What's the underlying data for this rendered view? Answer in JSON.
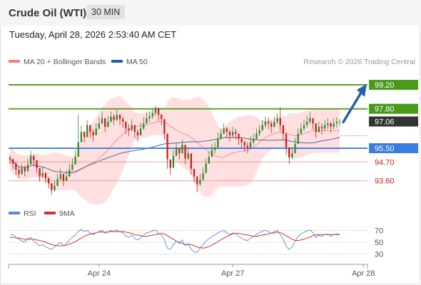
{
  "header": {
    "title": "Crude Oil (WTI)",
    "timeframe": "30 MIN"
  },
  "timestamp": "Tuesday, April 28, 2026 2:53:40 AM CET",
  "colors": {
    "resistance": "#4a9a1a",
    "support": "#3a7de0",
    "minor_support": "#f08080",
    "current": "#333333",
    "arrow": "#2b5ea8",
    "bull_candle": "#2f8a2f",
    "bear_candle": "#c81e1e",
    "rsi": "#5b8ad6",
    "rsi_ma": "#d83030",
    "bollinger_fill": "#ffd9d9",
    "ma50": "#4a6aa0"
  },
  "chart_data": [
    {
      "type": "candlestick",
      "title": "",
      "legend": [
        {
          "name": "MA 20 + Bollinger Bands",
          "color": "#f08080"
        },
        {
          "name": "MA 50",
          "color": "#2b5ea8"
        }
      ],
      "legend_position": "top-left",
      "watermark": "Research © 2026 Trading Central",
      "ylim": [
        92.3,
        100.2
      ],
      "x_ticks": [
        {
          "label": "Apr 24",
          "i": 30
        },
        {
          "label": "Apr 27",
          "i": 75
        },
        {
          "label": "Apr 28",
          "i": 119
        }
      ],
      "levels": [
        {
          "label": "99.20",
          "value": 99.2,
          "kind": "resistance"
        },
        {
          "label": "97.80",
          "value": 97.8,
          "kind": "resistance"
        },
        {
          "label": "97.06",
          "value": 97.06,
          "kind": "current"
        },
        {
          "label": "95.50",
          "value": 95.5,
          "kind": "support"
        },
        {
          "label": "94.70",
          "value": 94.7,
          "kind": "minor_support"
        },
        {
          "label": "93.60",
          "value": 93.6,
          "kind": "minor_support"
        }
      ],
      "projection": {
        "from": 97.06,
        "to": 99.2
      },
      "closes": [
        94.85,
        94.6,
        94.25,
        94.0,
        94.35,
        94.15,
        94.55,
        95.05,
        94.8,
        94.35,
        93.85,
        94.05,
        93.75,
        93.45,
        93.05,
        93.3,
        93.7,
        94.0,
        93.6,
        93.85,
        94.25,
        94.55,
        95.0,
        95.85,
        96.45,
        96.15,
        96.85,
        96.45,
        96.25,
        96.65,
        96.95,
        97.25,
        96.75,
        97.05,
        97.35,
        97.15,
        97.45,
        97.2,
        97.05,
        96.65,
        96.55,
        96.85,
        96.45,
        96.25,
        96.65,
        96.95,
        97.25,
        97.35,
        97.55,
        97.85,
        97.45,
        97.2,
        96.35,
        94.85,
        94.35,
        95.05,
        95.5,
        95.2,
        95.7,
        94.9,
        95.2,
        94.3,
        93.85,
        93.4,
        93.65,
        94.05,
        94.6,
        95.0,
        95.4,
        95.55,
        96.05,
        96.35,
        96.65,
        96.45,
        96.25,
        96.45,
        96.35,
        96.05,
        95.85,
        95.65,
        95.55,
        95.85,
        96.05,
        96.35,
        96.55,
        96.85,
        97.05,
        96.95,
        96.75,
        97.05,
        97.25,
        96.85,
        96.35,
        95.55,
        94.95,
        95.2,
        95.75,
        96.35,
        96.65,
        96.85,
        97.05,
        97.25,
        96.95,
        96.45,
        96.75,
        96.65,
        96.85,
        96.95,
        96.75,
        96.95,
        97.05,
        97.06
      ],
      "highs": [
        95.1,
        94.9,
        94.7,
        94.4,
        94.6,
        94.5,
        94.9,
        95.35,
        95.1,
        94.7,
        94.2,
        94.4,
        94.1,
        93.8,
        93.4,
        93.6,
        94.0,
        94.3,
        93.9,
        94.2,
        94.6,
        94.9,
        95.4,
        97.45,
        96.8,
        96.5,
        97.15,
        96.8,
        96.6,
        96.95,
        97.3,
        97.6,
        97.0,
        97.4,
        97.65,
        97.5,
        97.75,
        97.5,
        97.35,
        97.0,
        96.9,
        97.2,
        96.8,
        96.6,
        97.0,
        97.3,
        97.6,
        97.65,
        97.85,
        98.0,
        97.75,
        97.5,
        96.7,
        95.2,
        94.7,
        95.4,
        95.8,
        95.5,
        96.0,
        95.2,
        95.5,
        94.65,
        94.15,
        93.75,
        94.0,
        94.4,
        94.9,
        95.3,
        95.75,
        95.85,
        96.4,
        96.65,
        96.95,
        96.75,
        96.6,
        96.75,
        96.65,
        96.35,
        96.15,
        95.95,
        95.85,
        96.2,
        96.35,
        96.65,
        96.85,
        97.15,
        97.35,
        97.3,
        97.1,
        97.35,
        97.55,
        97.9,
        96.7,
        95.85,
        95.3,
        95.5,
        96.1,
        96.65,
        96.95,
        97.15,
        97.4,
        97.6,
        97.25,
        96.8,
        97.05,
        96.95,
        97.15,
        97.25,
        97.05,
        97.25,
        97.3,
        97.2
      ],
      "lows": [
        94.55,
        94.3,
        93.95,
        93.75,
        93.95,
        93.85,
        94.25,
        94.7,
        94.45,
        94.05,
        93.55,
        93.75,
        93.45,
        93.15,
        92.8,
        92.95,
        93.35,
        93.65,
        93.3,
        93.55,
        93.9,
        94.2,
        94.7,
        95.5,
        96.05,
        95.85,
        96.5,
        96.1,
        95.9,
        96.3,
        96.6,
        96.9,
        96.45,
        96.7,
        97.0,
        96.85,
        97.1,
        96.85,
        96.7,
        96.3,
        96.2,
        96.5,
        96.1,
        95.9,
        96.3,
        96.6,
        96.9,
        97.0,
        97.2,
        97.4,
        97.1,
        96.85,
        96.0,
        94.3,
        93.95,
        94.7,
        95.1,
        94.85,
        95.35,
        94.55,
        94.8,
        93.95,
        93.5,
        92.95,
        93.3,
        93.7,
        94.25,
        94.65,
        95.05,
        95.2,
        95.7,
        96.0,
        96.3,
        96.1,
        95.9,
        96.1,
        96.0,
        95.7,
        95.5,
        95.3,
        95.2,
        95.5,
        95.7,
        96.0,
        96.2,
        96.5,
        96.7,
        96.6,
        96.4,
        96.7,
        96.9,
        96.5,
        95.95,
        95.1,
        94.6,
        94.85,
        95.4,
        96.0,
        96.3,
        96.5,
        96.7,
        96.9,
        96.6,
        96.1,
        96.4,
        96.3,
        96.5,
        96.6,
        96.4,
        96.6,
        96.7,
        96.8
      ]
    },
    {
      "type": "line",
      "title": "",
      "legend": [
        {
          "name": "RSI",
          "color": "#5b8ad6"
        },
        {
          "name": "9MA",
          "color": "#d83030"
        }
      ],
      "ylim": [
        20,
        80
      ],
      "y_ticks": [
        "70",
        "50",
        "30"
      ],
      "rsi": [
        62,
        63,
        58,
        55,
        52,
        51,
        56,
        58,
        52,
        48,
        44,
        46,
        42,
        40,
        38,
        42,
        46,
        50,
        44,
        48,
        54,
        58,
        62,
        68,
        72,
        68,
        70,
        65,
        63,
        66,
        68,
        70,
        65,
        67,
        70,
        68,
        71,
        68,
        66,
        60,
        58,
        62,
        56,
        54,
        58,
        62,
        66,
        67,
        69,
        71,
        65,
        62,
        54,
        40,
        38,
        46,
        52,
        48,
        54,
        44,
        48,
        38,
        34,
        33,
        40,
        46,
        52,
        56,
        60,
        62,
        66,
        68,
        70,
        66,
        63,
        66,
        64,
        60,
        57,
        54,
        53,
        57,
        60,
        63,
        66,
        69,
        70,
        68,
        65,
        68,
        70,
        63,
        55,
        43,
        38,
        42,
        52,
        60,
        64,
        67,
        69,
        71,
        66,
        58,
        62,
        60,
        63,
        64,
        60,
        63,
        64,
        64
      ],
      "ma9": [
        58,
        58,
        58,
        57,
        56,
        55,
        55,
        55,
        55,
        54,
        53,
        52,
        50,
        48,
        46,
        45,
        44,
        44,
        44,
        45,
        47,
        49,
        51,
        54,
        57,
        60,
        62,
        64,
        65,
        66,
        67,
        67,
        67,
        67,
        68,
        68,
        68,
        68,
        68,
        67,
        66,
        65,
        63,
        62,
        61,
        60,
        60,
        61,
        62,
        63,
        64,
        65,
        64,
        61,
        58,
        55,
        52,
        50,
        48,
        46,
        46,
        46,
        44,
        42,
        41,
        40,
        41,
        43,
        45,
        48,
        51,
        54,
        57,
        60,
        62,
        64,
        65,
        65,
        64,
        63,
        62,
        61,
        60,
        60,
        61,
        62,
        63,
        64,
        65,
        66,
        67,
        66,
        64,
        61,
        58,
        55,
        53,
        53,
        54,
        55,
        57,
        59,
        61,
        63,
        63,
        63,
        63,
        63,
        63,
        63,
        63,
        63
      ]
    }
  ]
}
